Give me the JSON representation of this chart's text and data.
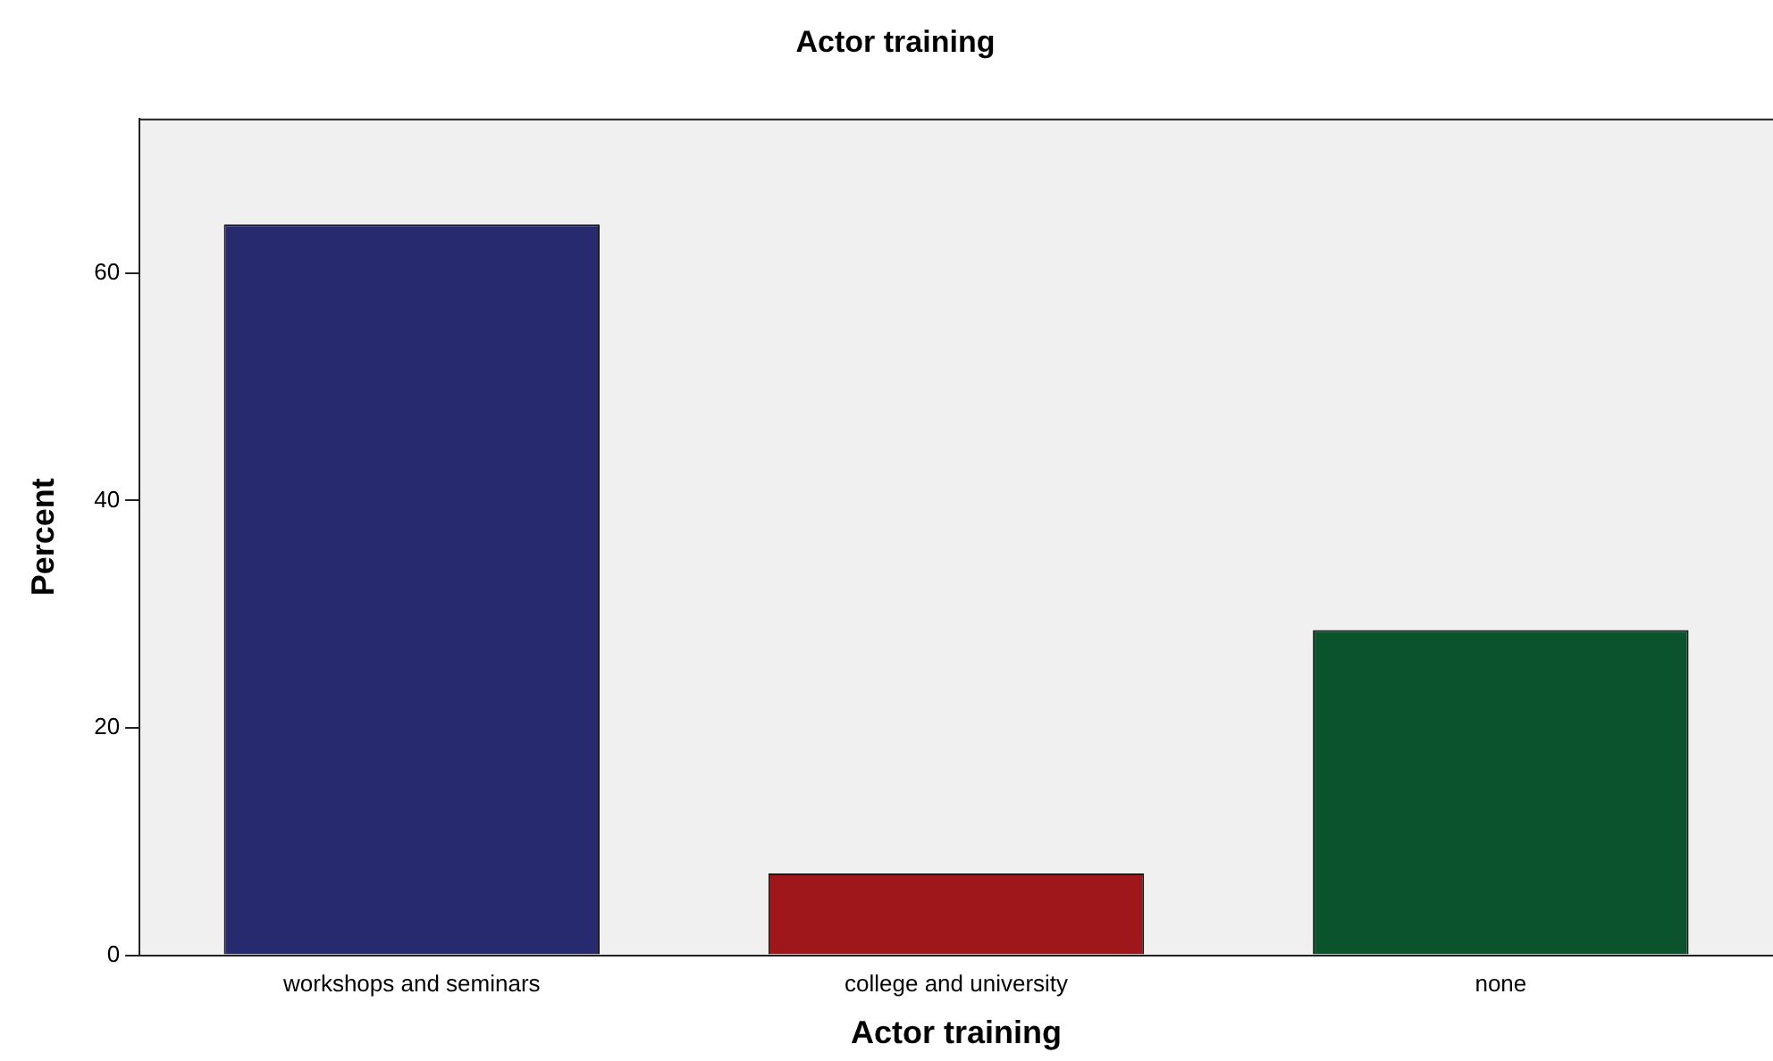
{
  "chart_data": {
    "type": "bar",
    "title": "Actor training",
    "xlabel": "Actor training",
    "ylabel": "Percent",
    "categories": [
      "workshops and seminars",
      "college and university",
      "none"
    ],
    "values": [
      64.3,
      7.2,
      28.6
    ],
    "colors": [
      "#282a70",
      "#a0171b",
      "#0b532d"
    ],
    "ylim": [
      0,
      73.6
    ],
    "yticks": [
      0,
      20,
      40,
      60
    ],
    "grid": false,
    "legend": false
  }
}
